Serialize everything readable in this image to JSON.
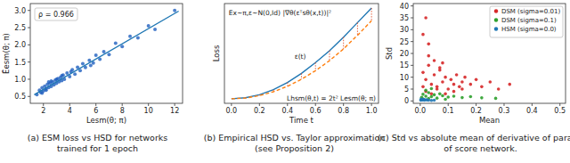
{
  "chart_data": [
    {
      "type": "scatter",
      "title": [
        "(a) ESM loss vs HSD for networks",
        "trained for 1 epoch"
      ],
      "x_label": "Lesm(θ; π)",
      "y_label": "Ẽesm(θ; π)",
      "annotations": [
        "ρ = 0.966"
      ],
      "xlim": [
        1,
        12.6
      ],
      "ylim": [
        0.3,
        3.2
      ],
      "xticks": [
        2,
        4,
        6,
        8,
        10,
        12
      ],
      "yticks": [
        0.5,
        {
          "value": 1.0,
          "label": "1.0"
        },
        1.5,
        {
          "value": 2.0,
          "label": "2.0"
        },
        2.5,
        {
          "value": 3.0,
          "label": "3.0"
        }
      ],
      "grid": false,
      "series": [
        {
          "color": "#1f5fbf",
          "marker": "circle",
          "x": [
            1.5,
            1.7,
            1.8,
            1.9,
            2.0,
            2.1,
            2.2,
            2.3,
            2.4,
            2.5,
            2.6,
            2.7,
            2.8,
            2.9,
            3.0,
            3.1,
            3.2,
            3.3,
            3.4,
            3.5,
            3.6,
            3.8,
            4.0,
            4.2,
            4.4,
            4.6,
            4.8,
            5.0,
            5.2,
            5.5,
            5.8,
            6.0,
            6.3,
            6.6,
            7.0,
            7.5,
            8.0,
            8.6,
            9.2,
            10.0,
            10.5,
            12.0,
            2.2,
            2.6,
            3.0,
            3.4,
            1.9,
            2.4,
            4.1,
            5.6
          ],
          "values": [
            0.55,
            0.68,
            0.62,
            0.75,
            0.66,
            0.8,
            0.72,
            0.85,
            0.76,
            0.88,
            0.79,
            0.92,
            0.84,
            0.97,
            0.88,
            1.02,
            0.93,
            1.05,
            0.96,
            1.12,
            1.0,
            1.18,
            1.08,
            1.28,
            1.15,
            1.35,
            1.25,
            1.45,
            1.34,
            1.55,
            1.47,
            1.7,
            1.58,
            1.8,
            1.72,
            2.05,
            1.95,
            2.25,
            2.2,
            2.55,
            2.45,
            3.0,
            0.68,
            0.95,
            1.0,
            1.1,
            0.6,
            0.92,
            1.22,
            1.4
          ]
        },
        {
          "type": "line",
          "color": "#1f77b4",
          "line_style": "solid",
          "x": [
            1.3,
            12.3
          ],
          "values": [
            0.55,
            2.98
          ]
        }
      ]
    },
    {
      "type": "line",
      "title": [
        "(b) Empirical HSD vs. Taylor approximation",
        "(see Proposition 2)"
      ],
      "x_label": "Time t",
      "y_label": "Loss",
      "annotations": [
        "Ex∼π,ε∼N(0,Id) |∇θ(εᵀsθ(x,t))|²",
        "ε(t)",
        "Lhsm(θ,t) = 2t² Lesm(θ; π)"
      ],
      "xlim": [
        -0.05,
        1.05
      ],
      "ylim": [
        -0.05,
        1.05
      ],
      "xticks": [
        {
          "value": 0.0,
          "label": "0.0"
        },
        0.2,
        0.4,
        0.6,
        0.8,
        {
          "value": 1.0,
          "label": "1.0"
        }
      ],
      "tick_labels": "x",
      "grid": false,
      "x": [
        0,
        0.1,
        0.2,
        0.3,
        0.4,
        0.5,
        0.6,
        0.7,
        0.8,
        0.9,
        1.0
      ],
      "series": [
        {
          "color": "#1f77b4",
          "line_style": "solid",
          "values": [
            0,
            0.012,
            0.045,
            0.1,
            0.18,
            0.28,
            0.4,
            0.53,
            0.68,
            0.84,
            1.0
          ]
        },
        {
          "color": "#ff7f0e",
          "line_style": "dashed",
          "values": [
            0,
            0.008,
            0.035,
            0.078,
            0.138,
            0.215,
            0.31,
            0.42,
            0.55,
            0.7,
            0.86
          ]
        }
      ]
    },
    {
      "type": "scatter",
      "title": [
        "(c) Std vs absolute mean of derivative of param.",
        "of score network."
      ],
      "x_label": "Mean",
      "y_label": "Std",
      "xlim": [
        -0.025,
        0.52
      ],
      "ylim": [
        -1,
        41
      ],
      "xticks": [
        {
          "value": 0.0,
          "label": "0.0"
        },
        0.1,
        0.2,
        0.3,
        0.4,
        0.5
      ],
      "yticks": [
        0,
        5,
        10,
        15,
        20,
        25,
        30,
        35,
        40
      ],
      "grid": false,
      "legend": "upper right",
      "series": [
        {
          "name": "DSM (sigma=0.01)",
          "color": "#d62728",
          "marker": "circle",
          "x": [
            0.01,
            0.02,
            0.03,
            0.04,
            0.05,
            0.06,
            0.07,
            0.08,
            0.09,
            0.1,
            0.11,
            0.12,
            0.13,
            0.14,
            0.15,
            0.16,
            0.18,
            0.2,
            0.22,
            0.25,
            0.28,
            0.32,
            0.03,
            0.05,
            0.07,
            0.02,
            0.04,
            0.06,
            0.09,
            0.12,
            0.15,
            0.01,
            0.08,
            0.02,
            0.01,
            0.03
          ],
          "values": [
            12,
            9,
            15,
            7,
            11,
            6,
            13,
            8,
            10,
            5,
            9,
            7,
            11,
            6,
            8,
            10,
            7,
            9,
            6,
            8,
            5,
            7,
            19,
            17,
            14,
            4,
            3,
            5,
            3,
            4,
            5,
            6,
            16,
            35,
            28,
            24
          ]
        },
        {
          "name": "DSM (sigma=0.1)",
          "color": "#2ca02c",
          "marker": "circle",
          "x": [
            0.005,
            0.01,
            0.02,
            0.03,
            0.04,
            0.05,
            0.06,
            0.08,
            0.1,
            0.12,
            0.15,
            0.18,
            0.22,
            0.27,
            0.02,
            0.04,
            0.07,
            0.01,
            0.03,
            0.09
          ],
          "values": [
            1.5,
            2.8,
            2.0,
            3.5,
            1.8,
            2.6,
            1.2,
            2.2,
            1.6,
            2.0,
            1.4,
            1.8,
            1.3,
            1.1,
            4.5,
            5.2,
            3.0,
            0.8,
            1.0,
            0.7
          ]
        },
        {
          "name": "HSM (sigma=0.0)",
          "color": "#1f77b4",
          "marker": "circle",
          "x": [
            0.002,
            0.005,
            0.008,
            0.01,
            0.015,
            0.02,
            0.025,
            0.03,
            0.04,
            0.05,
            0.003,
            0.012
          ],
          "values": [
            0.3,
            0.5,
            0.4,
            0.6,
            0.3,
            0.5,
            0.4,
            0.3,
            0.2,
            0.3,
            0.8,
            0.7
          ]
        }
      ]
    }
  ]
}
